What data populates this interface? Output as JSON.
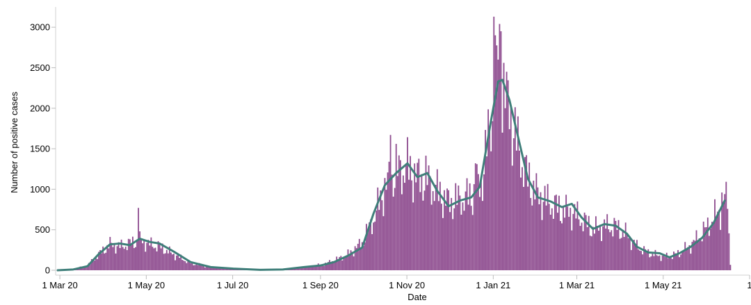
{
  "chart_data": {
    "type": "bar",
    "title": "",
    "xlabel": "Date",
    "ylabel": "Number of positive cases",
    "grid": false,
    "legend": "none",
    "xlim": [
      "2020-02-27",
      "2021-07-01"
    ],
    "ylim": [
      -60,
      3250
    ],
    "x_ticks": [
      {
        "date": "2020-03-01",
        "label": "1 Mar 20"
      },
      {
        "date": "2020-05-01",
        "label": "1 May 20"
      },
      {
        "date": "2020-07-01",
        "label": "1 Jul 20"
      },
      {
        "date": "2020-09-01",
        "label": "1 Sep 20"
      },
      {
        "date": "2020-11-01",
        "label": "1 Nov 20"
      },
      {
        "date": "2021-01-01",
        "label": "1 Jan 21"
      },
      {
        "date": "2021-03-01",
        "label": "1 Mar 21"
      },
      {
        "date": "2021-05-01",
        "label": "1 May 21"
      },
      {
        "date": "2021-07-01",
        "label": "1"
      }
    ],
    "y_ticks": [
      0,
      500,
      1000,
      1500,
      2000,
      2500,
      3000
    ],
    "bar_color": "#8e4c8f",
    "line_color": "#3f7f7a",
    "daily_cases_anchors": [
      [
        "2020-02-28",
        0
      ],
      [
        "2020-03-10",
        15
      ],
      [
        "2020-03-20",
        60
      ],
      [
        "2020-03-28",
        200
      ],
      [
        "2020-04-05",
        330
      ],
      [
        "2020-04-12",
        300
      ],
      [
        "2020-04-19",
        340
      ],
      [
        "2020-04-26",
        380
      ],
      [
        "2020-05-03",
        330
      ],
      [
        "2020-05-10",
        300
      ],
      [
        "2020-05-20",
        200
      ],
      [
        "2020-06-01",
        90
      ],
      [
        "2020-06-15",
        40
      ],
      [
        "2020-07-01",
        20
      ],
      [
        "2020-07-20",
        10
      ],
      [
        "2020-08-05",
        15
      ],
      [
        "2020-08-20",
        40
      ],
      [
        "2020-09-01",
        70
      ],
      [
        "2020-09-10",
        120
      ],
      [
        "2020-09-20",
        200
      ],
      [
        "2020-09-30",
        350
      ],
      [
        "2020-10-08",
        650
      ],
      [
        "2020-10-16",
        1050
      ],
      [
        "2020-10-24",
        1250
      ],
      [
        "2020-11-01",
        1300
      ],
      [
        "2020-11-08",
        1180
      ],
      [
        "2020-11-15",
        1150
      ],
      [
        "2020-11-22",
        1000
      ],
      [
        "2020-11-30",
        860
      ],
      [
        "2020-12-08",
        900
      ],
      [
        "2020-12-16",
        940
      ],
      [
        "2020-12-23",
        1100
      ],
      [
        "2020-12-30",
        1900
      ],
      [
        "2021-01-04",
        2400
      ],
      [
        "2021-01-09",
        2300
      ],
      [
        "2021-01-16",
        1700
      ],
      [
        "2021-01-24",
        1200
      ],
      [
        "2021-02-01",
        950
      ],
      [
        "2021-02-10",
        850
      ],
      [
        "2021-02-18",
        760
      ],
      [
        "2021-02-25",
        740
      ],
      [
        "2021-03-04",
        650
      ],
      [
        "2021-03-12",
        520
      ],
      [
        "2021-03-20",
        560
      ],
      [
        "2021-03-28",
        550
      ],
      [
        "2021-04-05",
        450
      ],
      [
        "2021-04-12",
        300
      ],
      [
        "2021-04-20",
        220
      ],
      [
        "2021-04-28",
        180
      ],
      [
        "2021-05-05",
        170
      ],
      [
        "2021-05-12",
        220
      ],
      [
        "2021-05-20",
        320
      ],
      [
        "2021-05-28",
        470
      ],
      [
        "2021-06-05",
        650
      ],
      [
        "2021-06-12",
        830
      ],
      [
        "2021-06-15",
        900
      ],
      [
        "2021-06-17",
        80
      ]
    ],
    "daily_cases_spikes": [
      [
        "2020-04-25",
        770
      ],
      [
        "2020-10-20",
        1670
      ],
      [
        "2020-10-24",
        1560
      ],
      [
        "2020-12-19",
        1320
      ],
      [
        "2020-12-20",
        1310
      ],
      [
        "2021-01-01",
        3130
      ],
      [
        "2021-01-02",
        2900
      ],
      [
        "2021-01-04",
        2600
      ],
      [
        "2021-01-05",
        3040
      ],
      [
        "2021-01-06",
        2950
      ],
      [
        "2021-01-08",
        2560
      ],
      [
        "2021-01-10",
        2450
      ],
      [
        "2021-06-11",
        960
      ],
      [
        "2021-06-13",
        940
      ]
    ],
    "rolling_average": [
      [
        "2020-02-28",
        0
      ],
      [
        "2020-03-10",
        10
      ],
      [
        "2020-03-20",
        50
      ],
      [
        "2020-03-28",
        200
      ],
      [
        "2020-04-05",
        320
      ],
      [
        "2020-04-12",
        330
      ],
      [
        "2020-04-19",
        310
      ],
      [
        "2020-04-26",
        390
      ],
      [
        "2020-05-03",
        350
      ],
      [
        "2020-05-10",
        330
      ],
      [
        "2020-05-20",
        230
      ],
      [
        "2020-06-01",
        100
      ],
      [
        "2020-06-15",
        40
      ],
      [
        "2020-07-01",
        20
      ],
      [
        "2020-07-20",
        5
      ],
      [
        "2020-08-05",
        10
      ],
      [
        "2020-08-20",
        40
      ],
      [
        "2020-09-01",
        60
      ],
      [
        "2020-09-10",
        100
      ],
      [
        "2020-09-20",
        180
      ],
      [
        "2020-09-30",
        280
      ],
      [
        "2020-10-08",
        700
      ],
      [
        "2020-10-16",
        1050
      ],
      [
        "2020-10-24",
        1200
      ],
      [
        "2020-11-01",
        1320
      ],
      [
        "2020-11-08",
        1150
      ],
      [
        "2020-11-15",
        1200
      ],
      [
        "2020-11-22",
        980
      ],
      [
        "2020-11-30",
        790
      ],
      [
        "2020-12-08",
        860
      ],
      [
        "2020-12-16",
        900
      ],
      [
        "2020-12-22",
        1030
      ],
      [
        "2020-12-30",
        1850
      ],
      [
        "2021-01-04",
        2330
      ],
      [
        "2021-01-07",
        2350
      ],
      [
        "2021-01-12",
        2100
      ],
      [
        "2021-01-18",
        1650
      ],
      [
        "2021-01-25",
        1130
      ],
      [
        "2021-02-01",
        900
      ],
      [
        "2021-02-10",
        850
      ],
      [
        "2021-02-18",
        780
      ],
      [
        "2021-02-25",
        820
      ],
      [
        "2021-03-04",
        650
      ],
      [
        "2021-03-12",
        510
      ],
      [
        "2021-03-20",
        570
      ],
      [
        "2021-03-28",
        550
      ],
      [
        "2021-04-05",
        450
      ],
      [
        "2021-04-12",
        290
      ],
      [
        "2021-04-20",
        220
      ],
      [
        "2021-04-28",
        210
      ],
      [
        "2021-05-05",
        160
      ],
      [
        "2021-05-12",
        210
      ],
      [
        "2021-05-20",
        290
      ],
      [
        "2021-05-28",
        400
      ],
      [
        "2021-06-05",
        580
      ],
      [
        "2021-06-13",
        860
      ]
    ]
  }
}
